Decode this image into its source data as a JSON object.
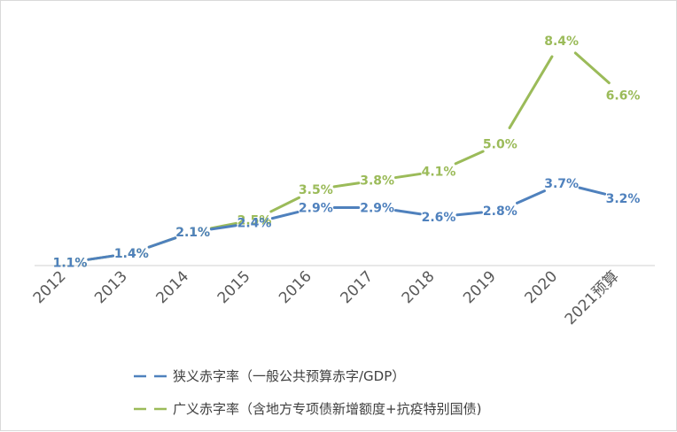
{
  "chart_data": {
    "type": "line",
    "categories": [
      "2012",
      "2013",
      "2014",
      "2015",
      "2016",
      "2017",
      "2018",
      "2019",
      "2020",
      "2021预算"
    ],
    "series": [
      {
        "name": "狭义赤字率（一般公共预算赤字/GDP）",
        "color": "#4f81bd",
        "values": [
          1.1,
          1.4,
          2.1,
          2.4,
          2.9,
          2.9,
          2.6,
          2.8,
          3.7,
          3.2
        ],
        "labels": [
          "1.1%",
          "1.4%",
          "2.1%",
          "2.4%",
          "2.9%",
          "2.9%",
          "2.6%",
          "2.8%",
          "3.7%",
          "3.2%"
        ]
      },
      {
        "name": "广义赤字率（含地方专项债新增额度+抗疫特别国债)",
        "color": "#9bbb59",
        "values": [
          1.1,
          1.4,
          2.1,
          2.5,
          3.5,
          3.8,
          4.1,
          5.0,
          8.4,
          6.6
        ],
        "labels": [
          "1.1%",
          "1.4%",
          "2.1%",
          "2.5%",
          "3.5%",
          "3.8%",
          "4.1%",
          "5.0%",
          "8.4%",
          "6.6%"
        ]
      }
    ],
    "legend_position": "bottom",
    "grid": false
  }
}
